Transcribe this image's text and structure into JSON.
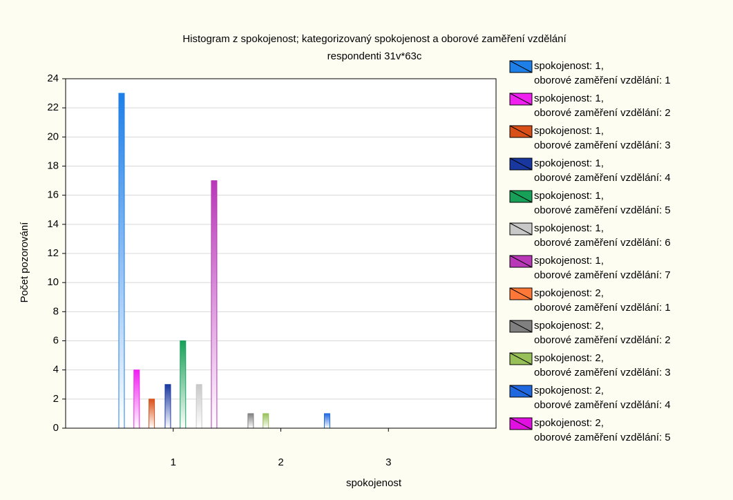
{
  "chart_data": {
    "type": "bar",
    "title": "Histogram z spokojenost; kategorizovaný spokojenost  a  oborové zaměření vzdělání",
    "subtitle": "respondenti 31v*63c",
    "x_label": "spokojenost",
    "y_label": "Počet pozorování",
    "xlim": [
      0,
      4
    ],
    "xticks": [
      1,
      2,
      3
    ],
    "ylim": [
      0,
      24
    ],
    "yticks": [
      0,
      2,
      4,
      6,
      8,
      10,
      12,
      14,
      16,
      18,
      20,
      22,
      24
    ],
    "grid": true,
    "legend": "right",
    "series": [
      {
        "name": "spokojenost: 1,\noborové zaměření vzdělání: 1",
        "color": "#1e7fe8",
        "x": [
          0.52
        ],
        "values": [
          23
        ]
      },
      {
        "name": "spokojenost: 1,\noborové zaměření vzdělání: 2",
        "color": "#f020f0",
        "x": [
          0.66
        ],
        "values": [
          4
        ]
      },
      {
        "name": "spokojenost: 1,\noborové zaměření vzdělání: 3",
        "color": "#d85018",
        "x": [
          0.8
        ],
        "values": [
          2
        ]
      },
      {
        "name": "spokojenost: 1,\noborové zaměření vzdělání: 4",
        "color": "#1838a0",
        "x": [
          0.95
        ],
        "values": [
          3
        ]
      },
      {
        "name": "spokojenost: 1,\noborové zaměření vzdělání: 5",
        "color": "#18a058",
        "x": [
          1.09
        ],
        "values": [
          6
        ]
      },
      {
        "name": "spokojenost: 1,\noborové zaměření vzdělání: 6",
        "color": "#c8c8c8",
        "x": [
          1.24
        ],
        "values": [
          3
        ]
      },
      {
        "name": "spokojenost: 1,\noborové zaměření vzdělání: 7",
        "color": "#b838b8",
        "x": [
          1.38
        ],
        "values": [
          17
        ]
      },
      {
        "name": "spokojenost: 2,\noborové zaměření vzdělání: 1",
        "color": "#ff7838",
        "x": [
          1.58
        ],
        "values": [
          0
        ]
      },
      {
        "name": "spokojenost: 2,\noborové zaměření vzdělání: 2",
        "color": "#808080",
        "x": [
          1.72
        ],
        "values": [
          1
        ]
      },
      {
        "name": "spokojenost: 2,\noborové zaměření vzdělání: 3",
        "color": "#98c058",
        "x": [
          1.86
        ],
        "values": [
          1
        ]
      },
      {
        "name": "spokojenost: 2,\noborové zaměření vzdělání: 4",
        "color": "#2068e0",
        "x": [
          2.43
        ],
        "values": [
          1
        ]
      },
      {
        "name": "spokojenost: 2,\noborové zaměření vzdělání: 5",
        "color": "#e010e0",
        "x": [
          2.57
        ],
        "values": [
          0
        ]
      }
    ]
  }
}
